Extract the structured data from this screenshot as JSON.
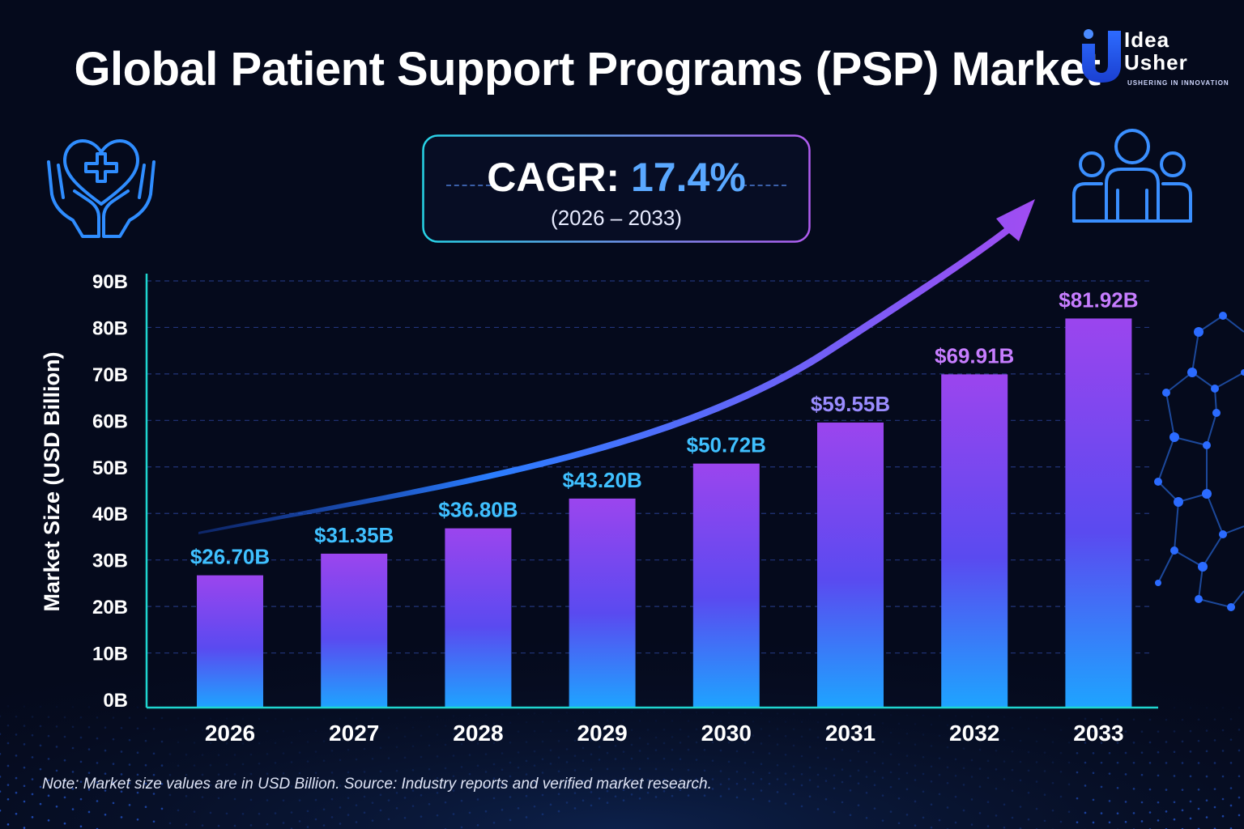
{
  "title": "Global Patient Support Programs (PSP) Market",
  "logo": {
    "line1": "Idea",
    "line2": "Usher",
    "tagline": "USHERING IN INNOVATION"
  },
  "cagr": {
    "label": "CAGR:",
    "value": "17.4%",
    "range": "(2026 – 2033)"
  },
  "note": "Note: Market size values are in USD Billion. Source: Industry reports and verified market research.",
  "icons": [
    "heart-hands-icon",
    "people-group-icon",
    "molecule-network-icon",
    "growth-arrow-icon"
  ],
  "colors": {
    "background": "#050a1c",
    "bar_top": "#9b45ee",
    "bar_bottom": "#1ea4ff",
    "label_blue": "#3fc0ff",
    "label_purple": "#c77dff",
    "axis": "#1fd6d0"
  },
  "chart_data": {
    "type": "bar",
    "ylabel": "Market Size (USD Billion)",
    "xlabel": "",
    "ylim": [
      0,
      90
    ],
    "yticks": [
      "0B",
      "10B",
      "20B",
      "30B",
      "40B",
      "50B",
      "60B",
      "70B",
      "80B",
      "90B"
    ],
    "categories": [
      "2026",
      "2027",
      "2028",
      "2029",
      "2030",
      "2031",
      "2032",
      "2033"
    ],
    "values": [
      26.7,
      31.35,
      36.8,
      43.2,
      50.72,
      59.55,
      69.91,
      81.92
    ],
    "labels": [
      "$26.70B",
      "$31.35B",
      "$36.80B",
      "$43.20B",
      "$50.72B",
      "$59.55B",
      "$69.91B",
      "$81.92B"
    ],
    "grid": true,
    "trend_arrow": true
  }
}
